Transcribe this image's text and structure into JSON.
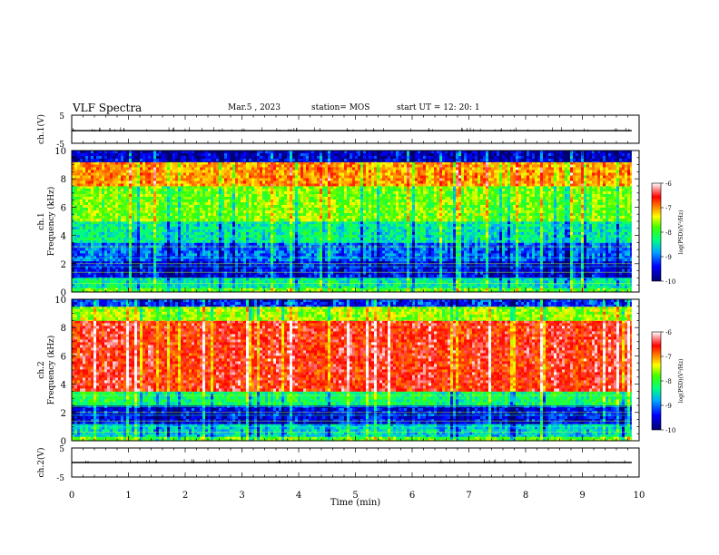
{
  "header": {
    "title": "VLF Spectra",
    "date": "Mar.5 , 2023",
    "station": "station= MOS",
    "start_ut": "start UT = 12: 20: 1"
  },
  "chart_data": [
    {
      "type": "line",
      "panel": "waveform-ch1",
      "ylabel": "ch.1(V)",
      "ylim": [
        -5,
        5
      ],
      "yticks": [
        "5",
        "-5"
      ],
      "xlim": [
        0,
        10
      ],
      "series": [
        {
          "x": [
            0,
            10
          ],
          "values": [
            -0.5,
            -0.5
          ]
        }
      ]
    },
    {
      "type": "heatmap",
      "panel": "spectrogram-ch1",
      "ylabel": "ch.1\nFrequency (kHz)",
      "ylim": [
        0,
        10
      ],
      "yticks": [
        "0",
        "2",
        "4",
        "6",
        "8",
        "10"
      ],
      "xlim": [
        0,
        10
      ],
      "data_extent_min": 9.87,
      "colorbar": {
        "label": "log(PSD)(V²/Hz)",
        "range": [
          -10,
          -6
        ],
        "ticks": [
          "-6",
          "-7",
          "-8",
          "-9",
          "-10"
        ]
      },
      "bands": [
        {
          "from_khz": 0,
          "to_khz": 0.3,
          "log_psd": -8.0
        },
        {
          "from_khz": 0.3,
          "to_khz": 1.0,
          "log_psd": -8.6
        },
        {
          "from_khz": 1.0,
          "to_khz": 2.2,
          "log_psd": -9.6
        },
        {
          "from_khz": 2.2,
          "to_khz": 3.5,
          "log_psd": -9.2
        },
        {
          "from_khz": 3.5,
          "to_khz": 5.0,
          "log_psd": -8.6
        },
        {
          "from_khz": 5.0,
          "to_khz": 7.5,
          "log_psd": -7.9
        },
        {
          "from_khz": 7.5,
          "to_khz": 9.2,
          "log_psd": -7.1
        },
        {
          "from_khz": 9.2,
          "to_khz": 10.0,
          "log_psd": -9.7
        }
      ]
    },
    {
      "type": "heatmap",
      "panel": "spectrogram-ch2",
      "ylabel": "ch.2\nFrequency (kHz)",
      "ylim": [
        0,
        10
      ],
      "yticks": [
        "0",
        "2",
        "4",
        "6",
        "8",
        "10"
      ],
      "xlim": [
        0,
        10
      ],
      "data_extent_min": 9.87,
      "colorbar": {
        "label": "log(PSD)(V²/Hz)",
        "range": [
          -10,
          -6
        ],
        "ticks": [
          "-6",
          "-7",
          "-8",
          "-9",
          "-10"
        ]
      },
      "bands": [
        {
          "from_khz": 0,
          "to_khz": 0.3,
          "log_psd": -8.0
        },
        {
          "from_khz": 0.3,
          "to_khz": 1.2,
          "log_psd": -8.8
        },
        {
          "from_khz": 1.2,
          "to_khz": 2.5,
          "log_psd": -9.6
        },
        {
          "from_khz": 2.5,
          "to_khz": 3.5,
          "log_psd": -8.4
        },
        {
          "from_khz": 3.5,
          "to_khz": 8.5,
          "log_psd": -6.6
        },
        {
          "from_khz": 8.5,
          "to_khz": 9.5,
          "log_psd": -7.8
        },
        {
          "from_khz": 9.5,
          "to_khz": 10.0,
          "log_psd": -9.4
        }
      ]
    },
    {
      "type": "line",
      "panel": "waveform-ch2",
      "ylabel": "ch.2(V)",
      "ylim": [
        -5,
        5
      ],
      "yticks": [
        "5",
        "-5"
      ],
      "xlim": [
        0,
        10
      ],
      "xlabel": "Time (min)",
      "xticks": [
        "0",
        "1",
        "2",
        "3",
        "4",
        "5",
        "6",
        "7",
        "8",
        "9",
        "10"
      ],
      "series": [
        {
          "x": [
            0,
            10
          ],
          "values": [
            0,
            0
          ]
        }
      ]
    }
  ]
}
